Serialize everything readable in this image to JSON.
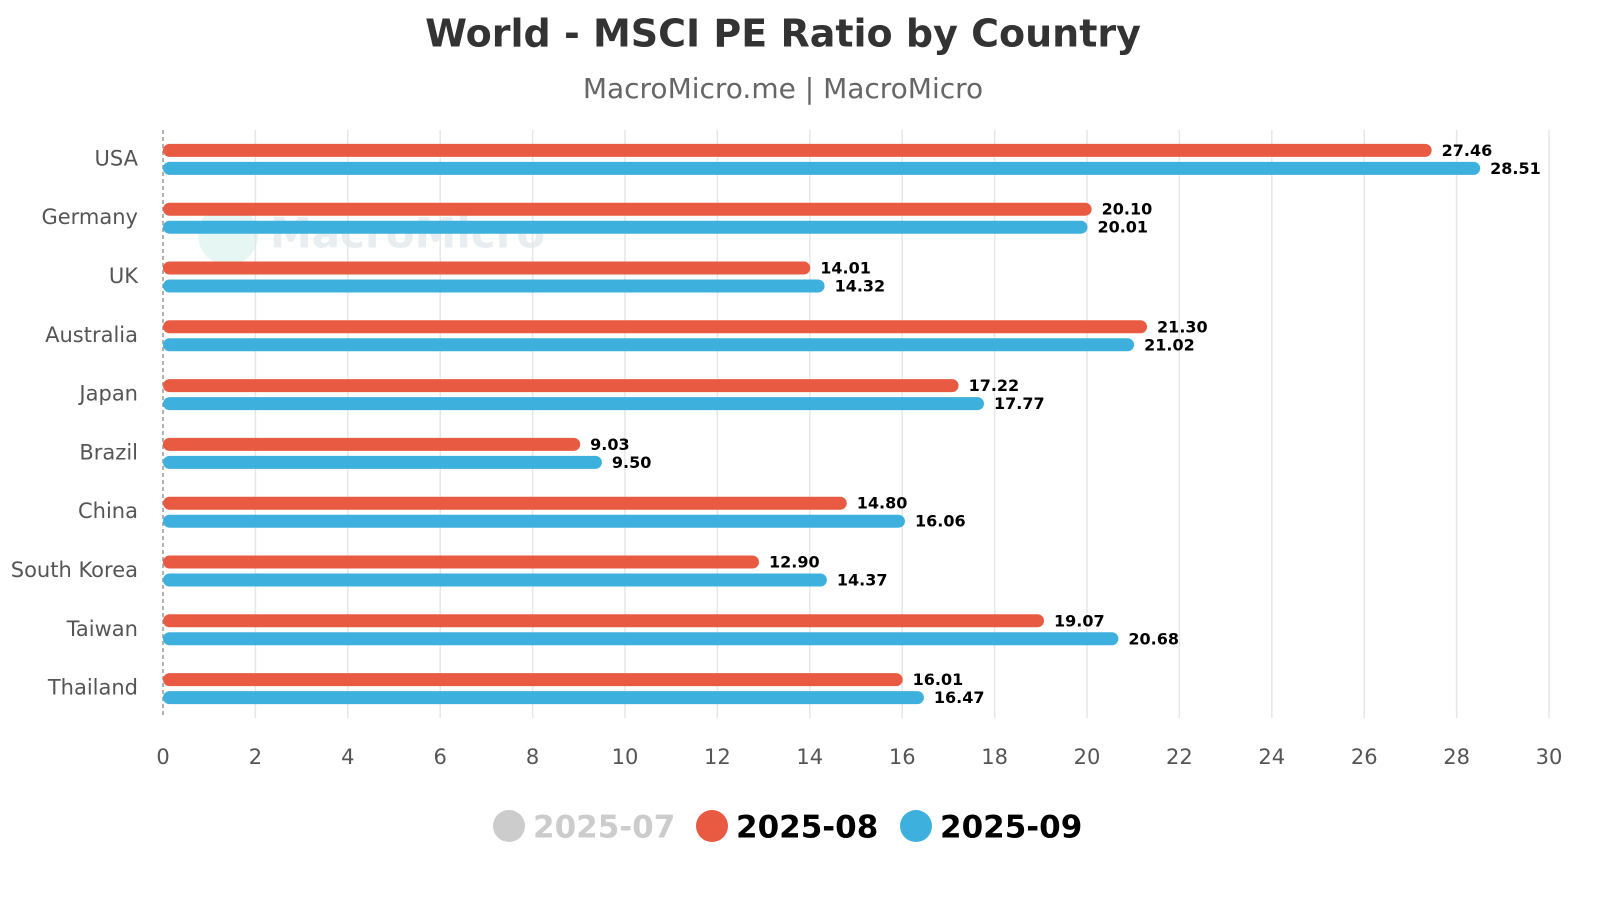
{
  "chart_data": {
    "type": "barh",
    "title": "World - MSCI PE Ratio by Country",
    "subtitle": "MacroMicro.me | MacroMicro",
    "watermark": "MacroMicro",
    "categories": [
      "USA",
      "Germany",
      "UK",
      "Australia",
      "Japan",
      "Brazil",
      "China",
      "South Korea",
      "Taiwan",
      "Thailand"
    ],
    "series": [
      {
        "name": "2025-07",
        "color": "#cccccc",
        "hidden": true,
        "values": [
          null,
          null,
          null,
          null,
          null,
          null,
          null,
          null,
          null,
          null
        ]
      },
      {
        "name": "2025-08",
        "color": "#e85a41",
        "values": [
          27.46,
          20.1,
          14.01,
          21.3,
          17.22,
          9.03,
          14.8,
          12.9,
          19.07,
          16.01
        ],
        "value_labels": [
          "27.46",
          "20.10",
          "14.01",
          "21.30",
          "17.22",
          "9.03",
          "14.80",
          "12.90",
          "19.07",
          "16.01"
        ]
      },
      {
        "name": "2025-09",
        "color": "#3db0de",
        "values": [
          28.51,
          20.01,
          14.32,
          21.02,
          17.77,
          9.5,
          16.06,
          14.37,
          20.68,
          16.47
        ],
        "value_labels": [
          "28.51",
          "20.01",
          "14.32",
          "21.02",
          "17.77",
          "9.50",
          "16.06",
          "14.37",
          "20.68",
          "16.47"
        ]
      }
    ],
    "xlim": [
      0,
      30
    ],
    "xticks": [
      0,
      2,
      4,
      6,
      8,
      10,
      12,
      14,
      16,
      18,
      20,
      22,
      24,
      26,
      28,
      30
    ],
    "grid": true
  }
}
